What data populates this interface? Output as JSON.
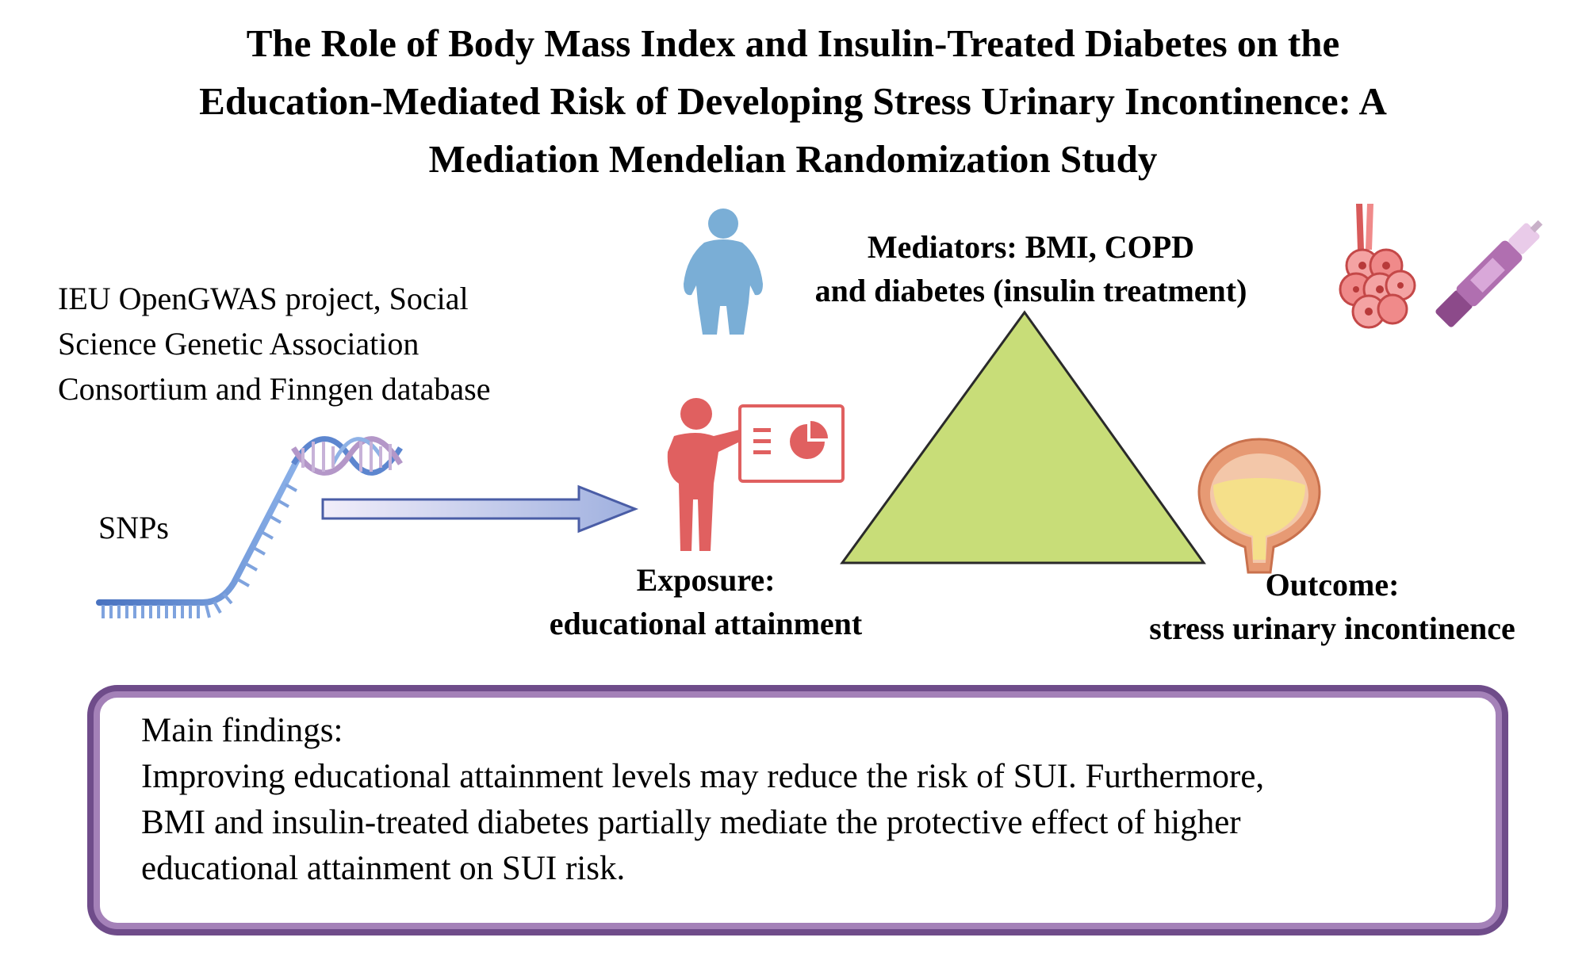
{
  "title": {
    "line1": "The Role of Body Mass Index and Insulin-Treated Diabetes on the",
    "line2": "Education-Mediated Risk of Developing Stress Urinary Incontinence: A",
    "line3": "Mediation Mendelian Randomization Study"
  },
  "source": {
    "line1": "IEU OpenGWAS project, Social",
    "line2": "Science Genetic Association",
    "line3": "Consortium and Finngen database"
  },
  "snps_label": "SNPs",
  "mediators": {
    "line1": "Mediators: BMI, COPD",
    "line2": "and diabetes (insulin treatment)"
  },
  "exposure": {
    "line1": "Exposure:",
    "line2": "educational attainment"
  },
  "outcome": {
    "line1": "Outcome:",
    "line2": "stress urinary incontinence"
  },
  "findings": {
    "heading": "Main findings:",
    "line1": "Improving educational attainment levels may reduce the risk of SUI. Furthermore,",
    "line2": "BMI and insulin-treated diabetes partially mediate the protective effect of higher",
    "line3": "educational attainment on SUI risk."
  },
  "icons": [
    "dna-icon",
    "arrow-icon",
    "teacher-icon",
    "obese-person-icon",
    "triangle-icon",
    "lung-alveoli-icon",
    "insulin-pen-icon",
    "bladder-icon"
  ],
  "colors": {
    "triangle": "#c8dd78",
    "teacher": "#e06060",
    "person": "#7aaed6",
    "dna": "#6c8fcf",
    "box_border": "#a481b8",
    "arrow": "#5e74b8"
  }
}
